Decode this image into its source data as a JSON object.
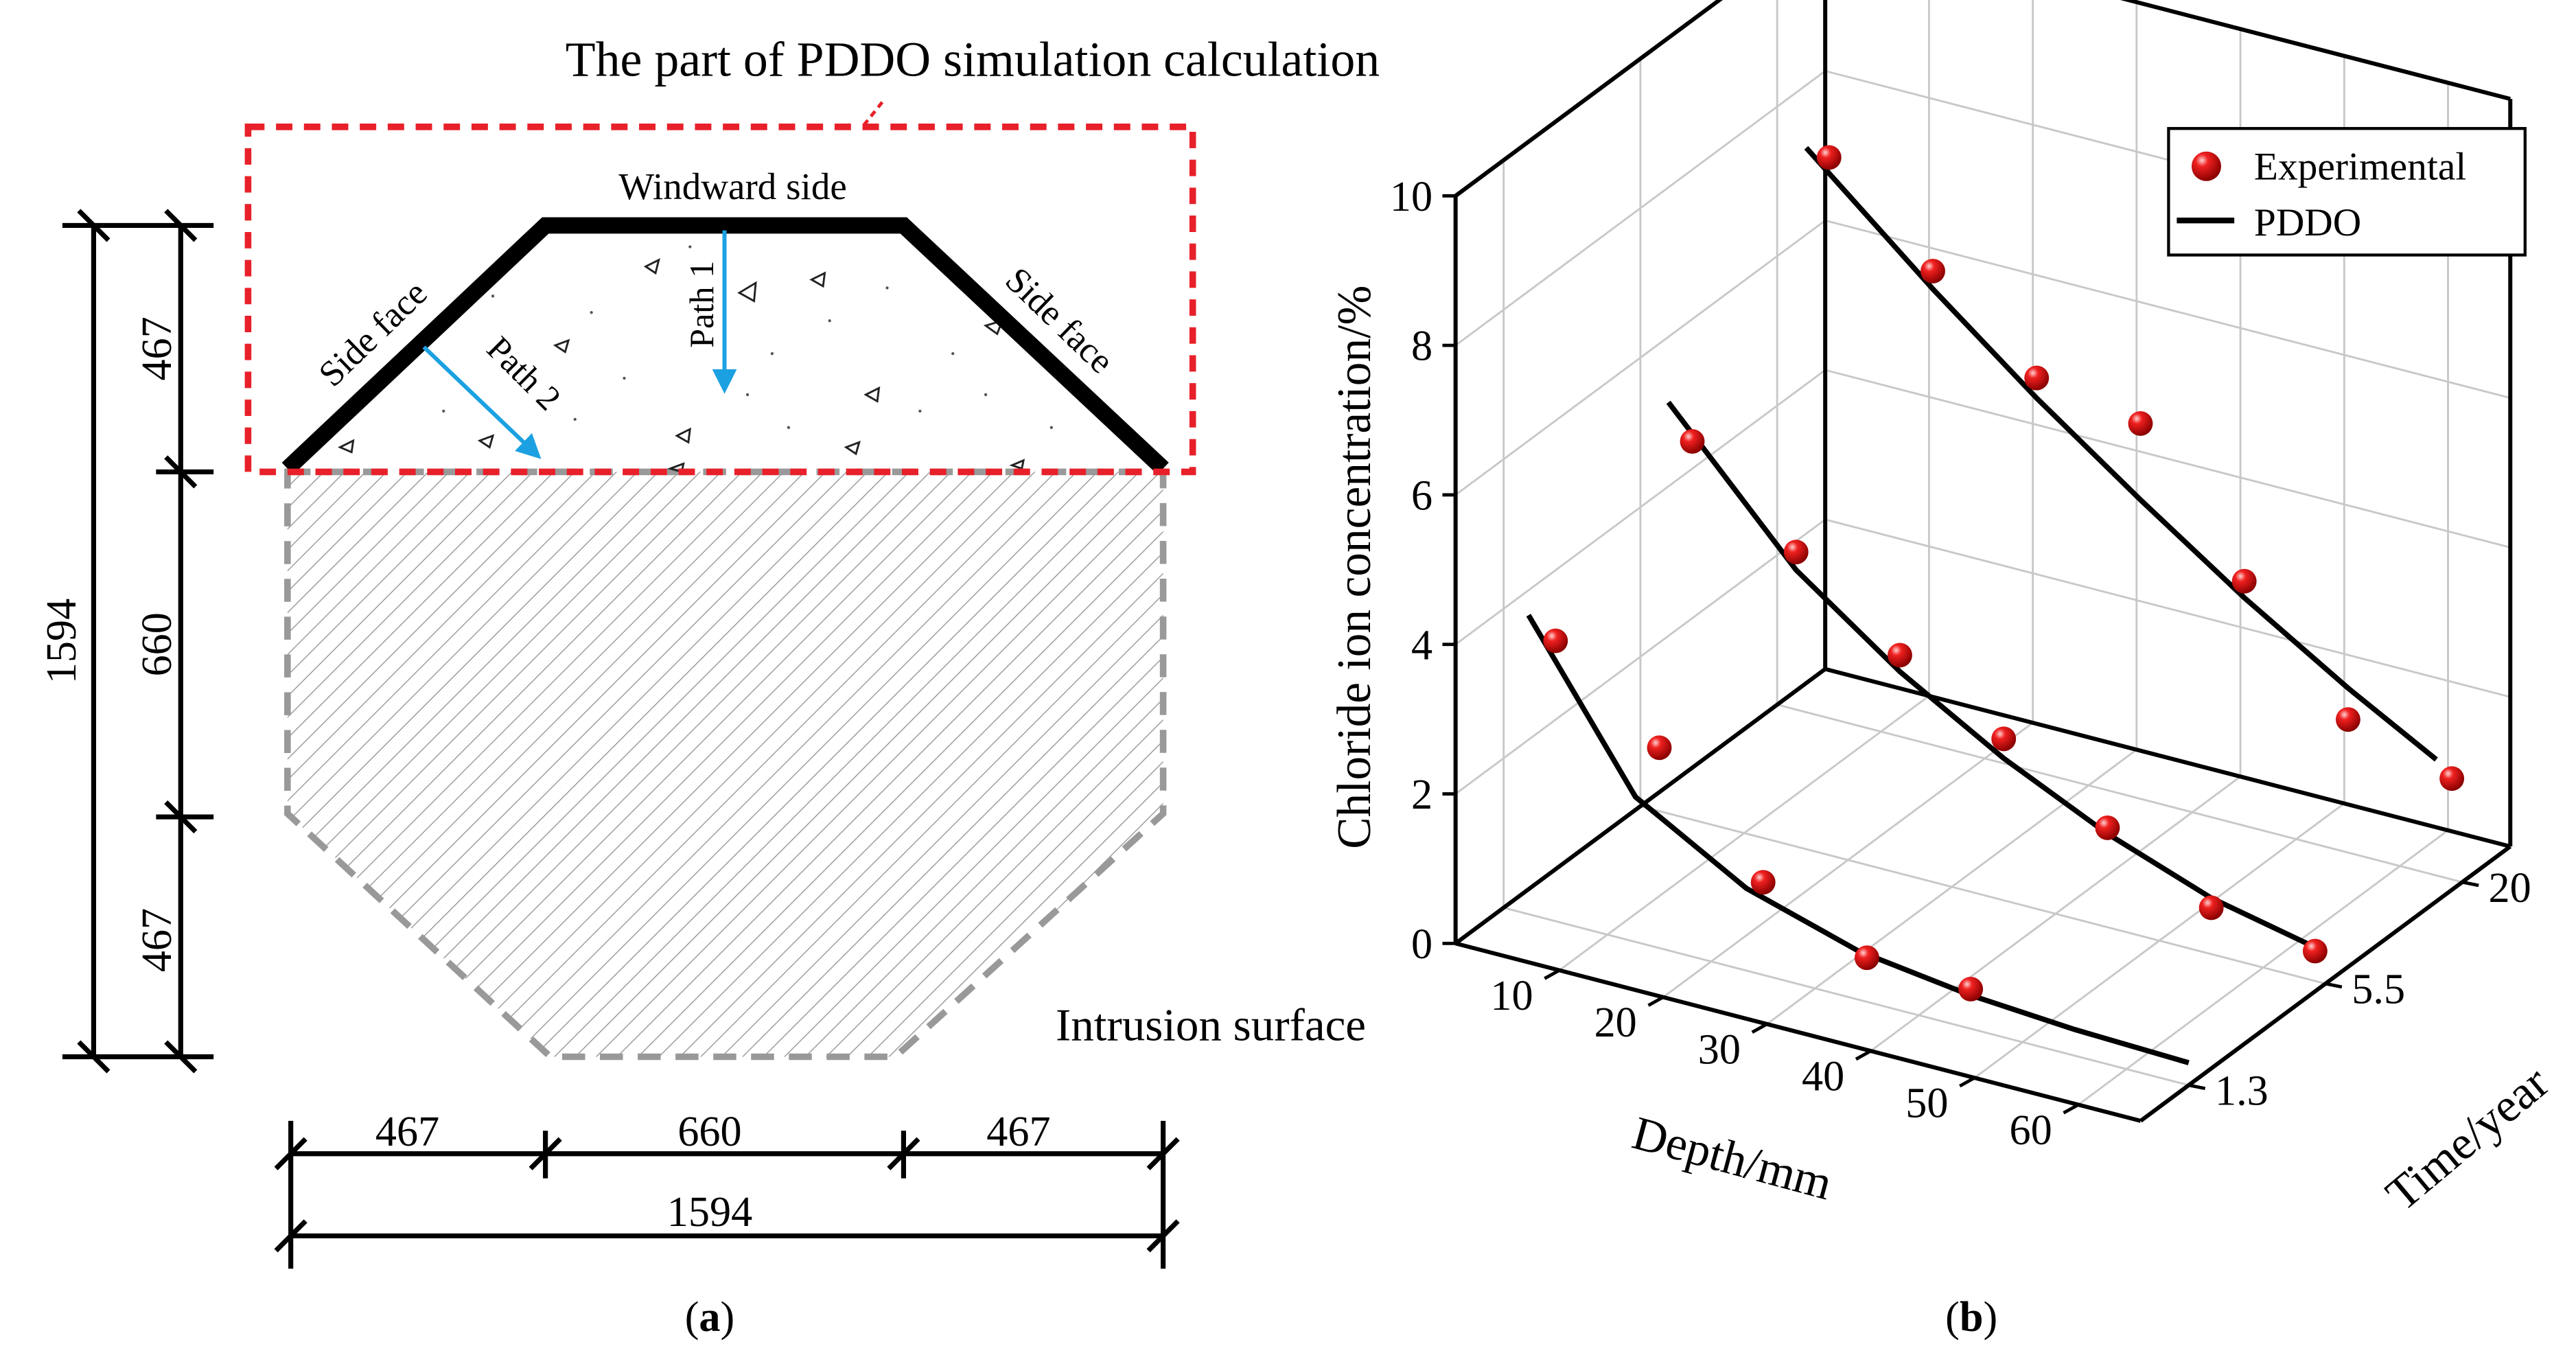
{
  "panel_a": {
    "title": "The part of PDDO simulation calculation",
    "windward_label": "Windward side",
    "side_face_left": "Side face",
    "side_face_right": "Side face",
    "path1_label": "Path 1",
    "path2_label": "Path 2",
    "intrusion_label": "Intrusion surface",
    "dims_left": {
      "total": "1594",
      "top": "467",
      "middle": "660",
      "bottom": "467"
    },
    "dims_bottom": {
      "left": "467",
      "middle": "660",
      "right": "467",
      "total": "1594"
    },
    "caption_open": "(",
    "caption_letter": "a",
    "caption_close": ")",
    "colors": {
      "red_box": "#e8202a",
      "arrow": "#1ba1e2",
      "hatch": "#9a9a9a"
    }
  },
  "panel_b": {
    "caption_open": "(",
    "caption_letter": "b",
    "caption_close": ")"
  },
  "chart_data": {
    "type": "line3d",
    "title": "",
    "xlabel": "Depth/mm",
    "ylabel": "Time/year",
    "zlabel": "Chloride ion concentration/%",
    "x_ticks": [
      "10",
      "20",
      "30",
      "40",
      "50",
      "60"
    ],
    "x_range": [
      0,
      66
    ],
    "y_categories": [
      "1.3",
      "5.5",
      "20"
    ],
    "z_ticks": [
      "0",
      "2",
      "4",
      "6",
      "8",
      "10"
    ],
    "z_range": [
      0,
      10
    ],
    "grid": true,
    "legend": {
      "position": "top-right",
      "entries": [
        "Experimental",
        "PDDO"
      ]
    },
    "series": [
      {
        "time": "1.3",
        "experimental": {
          "depth": [
            5,
            15,
            25,
            35,
            45
          ],
          "value": [
            3.75,
            2.68,
            1.24,
            0.59,
            0.53
          ]
        },
        "pddo": {
          "depth": [
            2.4,
            12.7,
            23.4,
            34.2,
            44.8,
            55,
            66
          ],
          "value": [
            4.0,
            1.94,
            1.1,
            0.65,
            0.45,
            0.35,
            0.3
          ]
        }
      },
      {
        "time": "5.5",
        "experimental": {
          "depth": [
            5,
            15,
            25,
            35,
            45,
            55,
            65
          ],
          "value": [
            5.06,
            3.94,
            2.92,
            2.16,
            1.33,
            0.62,
            0.4
          ]
        },
        "pddo": {
          "depth": [
            2.7,
            15,
            25,
            35,
            45,
            55,
            65
          ],
          "value": [
            5.5,
            3.7,
            2.7,
            1.9,
            1.25,
            0.75,
            0.45
          ]
        }
      },
      {
        "time": "20",
        "experimental": {
          "depth": [
            5,
            15,
            25,
            35,
            45,
            55,
            65
          ],
          "value": [
            7.5,
            6.34,
            5.27,
            5.02,
            3.27,
            1.78,
            1.35
          ]
        },
        "pddo": {
          "depth": [
            2.8,
            15,
            25,
            35,
            45,
            55,
            63.5
          ],
          "value": [
            7.55,
            6.1,
            5.0,
            4.0,
            3.05,
            2.2,
            1.55
          ]
        }
      }
    ],
    "colors": {
      "marker": "#e0101a",
      "line": "#000000",
      "grid": "#c8c8c8"
    }
  }
}
